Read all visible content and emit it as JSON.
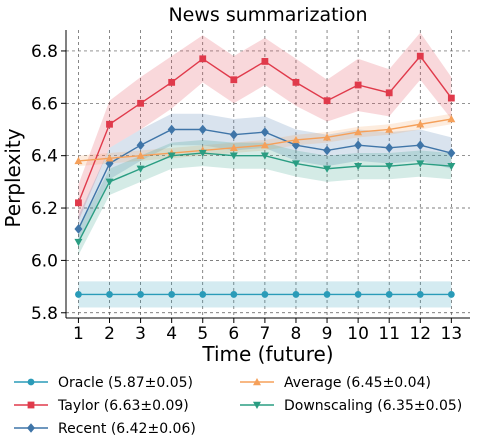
{
  "chart_data": {
    "type": "line",
    "title": "News summarization",
    "xlabel": "Time (future)",
    "ylabel": "Perplexity",
    "x": [
      1,
      2,
      3,
      4,
      5,
      6,
      7,
      8,
      9,
      10,
      11,
      12,
      13
    ],
    "xlim": [
      0.6,
      13.6
    ],
    "ylim": [
      5.78,
      6.88
    ],
    "yticks": [
      5.8,
      6.0,
      6.2,
      6.4,
      6.6,
      6.8
    ],
    "ytick_labels": [
      "5.8",
      "6.0",
      "6.2",
      "6.4",
      "6.6",
      "6.8"
    ],
    "grid": true,
    "legend_position": "bottom",
    "series": [
      {
        "name": "Oracle (5.87±0.05)",
        "color": "#2a9bb8",
        "marker": "circle",
        "values": [
          5.87,
          5.87,
          5.87,
          5.87,
          5.87,
          5.87,
          5.87,
          5.87,
          5.87,
          5.87,
          5.87,
          5.87,
          5.87
        ],
        "lower": [
          5.82,
          5.82,
          5.82,
          5.82,
          5.82,
          5.82,
          5.82,
          5.82,
          5.82,
          5.82,
          5.82,
          5.82,
          5.82
        ],
        "upper": [
          5.92,
          5.92,
          5.92,
          5.92,
          5.92,
          5.92,
          5.92,
          5.92,
          5.92,
          5.92,
          5.92,
          5.92,
          5.92
        ]
      },
      {
        "name": "Taylor (6.63±0.09)",
        "color": "#e03a4b",
        "marker": "square",
        "values": [
          6.22,
          6.52,
          6.6,
          6.68,
          6.77,
          6.69,
          6.76,
          6.68,
          6.61,
          6.67,
          6.64,
          6.78,
          6.62
        ],
        "lower": [
          6.15,
          6.43,
          6.5,
          6.58,
          6.68,
          6.6,
          6.67,
          6.59,
          6.53,
          6.57,
          6.55,
          6.69,
          6.54
        ],
        "upper": [
          6.29,
          6.61,
          6.7,
          6.78,
          6.86,
          6.78,
          6.85,
          6.77,
          6.69,
          6.77,
          6.73,
          6.87,
          6.7
        ]
      },
      {
        "name": "Recent (6.42±0.06)",
        "color": "#3f75a8",
        "marker": "diamond",
        "values": [
          6.12,
          6.37,
          6.44,
          6.5,
          6.5,
          6.48,
          6.49,
          6.44,
          6.42,
          6.44,
          6.43,
          6.44,
          6.41
        ],
        "lower": [
          6.07,
          6.31,
          6.38,
          6.44,
          6.44,
          6.42,
          6.43,
          6.38,
          6.36,
          6.38,
          6.37,
          6.38,
          6.35
        ],
        "upper": [
          6.17,
          6.43,
          6.5,
          6.56,
          6.56,
          6.54,
          6.55,
          6.5,
          6.48,
          6.5,
          6.49,
          6.5,
          6.47
        ]
      },
      {
        "name": "Average (6.45±0.04)",
        "color": "#f5a05a",
        "marker": "triangle-up",
        "values": [
          6.38,
          6.39,
          6.4,
          6.41,
          6.42,
          6.43,
          6.44,
          6.46,
          6.47,
          6.49,
          6.5,
          6.52,
          6.54
        ],
        "lower": [
          6.36,
          6.37,
          6.38,
          6.39,
          6.4,
          6.41,
          6.42,
          6.44,
          6.45,
          6.47,
          6.48,
          6.5,
          6.52
        ],
        "upper": [
          6.4,
          6.41,
          6.42,
          6.43,
          6.44,
          6.45,
          6.46,
          6.48,
          6.49,
          6.51,
          6.52,
          6.54,
          6.56
        ]
      },
      {
        "name": "Downscaling (6.35±0.05)",
        "color": "#2a9d82",
        "marker": "triangle-down",
        "values": [
          6.07,
          6.3,
          6.35,
          6.4,
          6.41,
          6.4,
          6.4,
          6.37,
          6.35,
          6.36,
          6.36,
          6.37,
          6.36
        ],
        "lower": [
          6.02,
          6.25,
          6.3,
          6.35,
          6.36,
          6.35,
          6.35,
          6.32,
          6.3,
          6.31,
          6.31,
          6.32,
          6.31
        ],
        "upper": [
          6.12,
          6.35,
          6.4,
          6.45,
          6.46,
          6.45,
          6.45,
          6.42,
          6.4,
          6.41,
          6.41,
          6.42,
          6.41
        ]
      }
    ]
  }
}
